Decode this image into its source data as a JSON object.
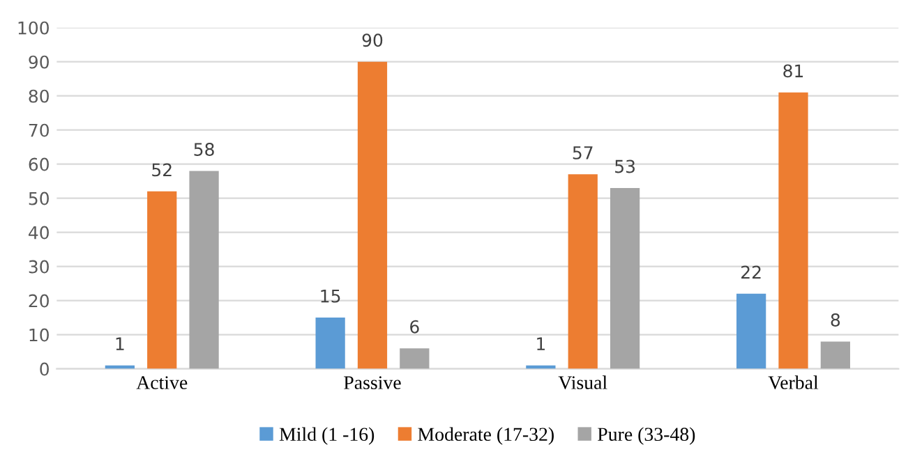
{
  "chart_data": {
    "type": "bar",
    "categories": [
      "Active",
      "Passive",
      "Visual",
      "Verbal"
    ],
    "series": [
      {
        "name": "Mild (1 -16)",
        "color": "#5b9bd5",
        "values": [
          1,
          15,
          1,
          22
        ]
      },
      {
        "name": "Moderate (17-32)",
        "color": "#ed7d31",
        "values": [
          52,
          90,
          57,
          81
        ]
      },
      {
        "name": "Pure (33-48)",
        "color": "#a5a5a5",
        "values": [
          58,
          6,
          53,
          8
        ]
      }
    ],
    "ylim": [
      0,
      100
    ],
    "yticks": [
      0,
      10,
      20,
      30,
      40,
      50,
      60,
      70,
      80,
      90,
      100
    ],
    "grid": "y",
    "legend": "bottom",
    "data_labels": true
  }
}
